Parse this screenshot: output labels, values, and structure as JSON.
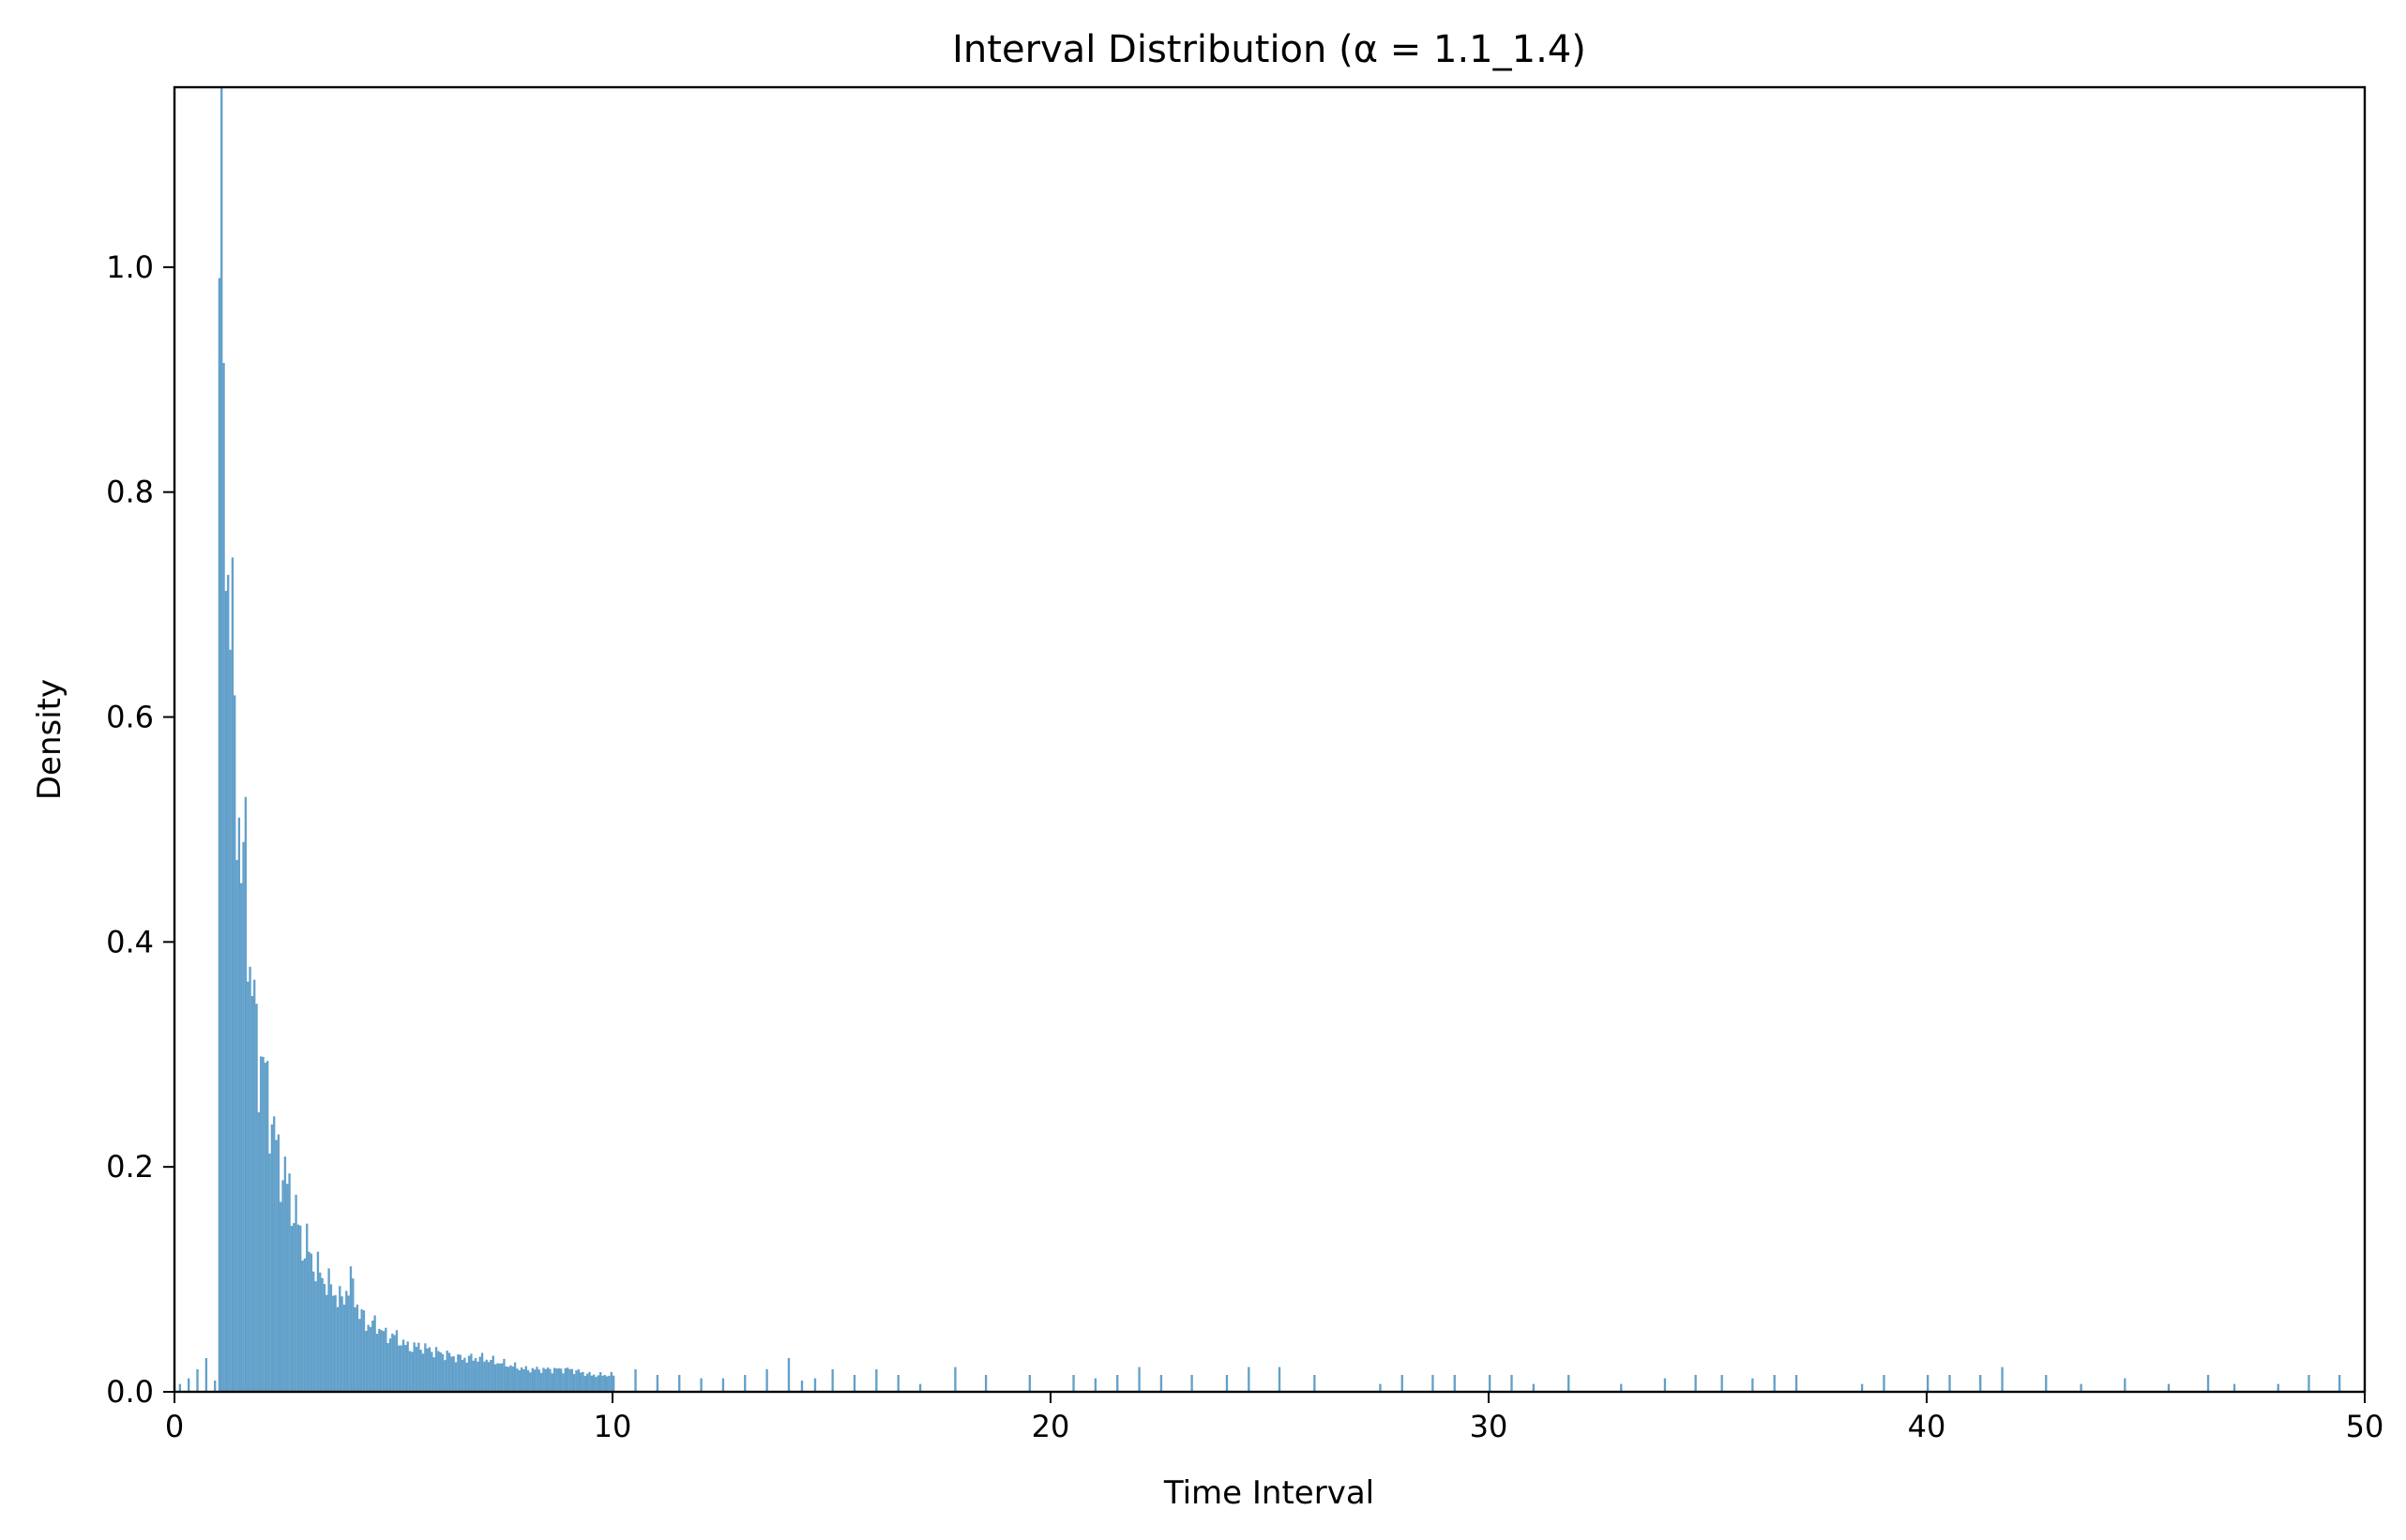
{
  "chart_data": {
    "type": "bar",
    "title": "Interval Distribution (α = 1.1_1.4)",
    "xlabel": "Time Interval",
    "ylabel": "Density",
    "xlim": [
      0,
      50
    ],
    "ylim": [
      0,
      1.16
    ],
    "grid": false,
    "legend": "none",
    "x_ticks": [
      "0",
      "10",
      "20",
      "30",
      "40",
      "50"
    ],
    "y_ticks": [
      "0.0",
      "0.2",
      "0.4",
      "0.6",
      "0.8",
      "1.0"
    ],
    "bar_color": "#1f77b4",
    "bar_opacity": 0.7,
    "bin_width": 0.05,
    "bins_main": {
      "x": [
        1.0,
        1.05,
        1.1,
        1.15,
        1.2,
        1.25,
        1.3,
        1.35,
        1.4,
        1.45,
        1.5,
        1.55,
        1.6,
        1.7,
        1.8,
        1.9,
        2.0,
        2.1,
        2.2,
        2.3,
        2.4,
        2.5,
        2.6,
        2.7,
        2.8,
        2.9,
        3.0,
        3.2,
        3.4,
        3.6,
        3.8,
        4.0,
        4.2,
        4.4,
        4.6,
        4.8,
        5.0,
        5.3,
        5.6,
        6.0,
        6.5,
        7.0,
        7.5,
        8.0,
        8.5,
        9.0,
        9.5,
        10.0
      ],
      "y": [
        1.06,
        1.16,
        0.91,
        0.8,
        0.72,
        0.7,
        0.65,
        0.6,
        0.55,
        0.5,
        0.47,
        0.44,
        0.5,
        0.37,
        0.34,
        0.3,
        0.29,
        0.27,
        0.24,
        0.22,
        0.2,
        0.19,
        0.18,
        0.16,
        0.15,
        0.13,
        0.13,
        0.11,
        0.1,
        0.09,
        0.08,
        0.1,
        0.07,
        0.06,
        0.06,
        0.05,
        0.05,
        0.04,
        0.04,
        0.035,
        0.03,
        0.03,
        0.025,
        0.02,
        0.02,
        0.02,
        0.015,
        0.015
      ]
    },
    "bins_tail": {
      "x": [
        0.1,
        0.3,
        0.5,
        0.7,
        0.9,
        10.5,
        11.0,
        11.5,
        12.0,
        12.5,
        13.0,
        13.5,
        14.0,
        14.3,
        14.6,
        15.0,
        15.5,
        16.0,
        16.5,
        17.0,
        17.8,
        18.5,
        19.5,
        20.5,
        21.0,
        21.5,
        22.0,
        22.5,
        23.2,
        24.0,
        24.5,
        25.2,
        26.0,
        27.5,
        28.0,
        28.7,
        29.2,
        30.0,
        30.5,
        31.0,
        31.8,
        33.0,
        34.0,
        34.7,
        35.3,
        36.0,
        36.5,
        37.0,
        38.5,
        39.0,
        40.0,
        40.5,
        41.2,
        41.7,
        42.7,
        43.5,
        44.5,
        45.5,
        46.4,
        47.0,
        48.0,
        48.7,
        49.4
      ],
      "y": [
        0.007,
        0.012,
        0.02,
        0.03,
        0.01,
        0.02,
        0.015,
        0.015,
        0.012,
        0.012,
        0.015,
        0.02,
        0.03,
        0.01,
        0.012,
        0.02,
        0.015,
        0.02,
        0.015,
        0.007,
        0.022,
        0.015,
        0.015,
        0.015,
        0.012,
        0.015,
        0.022,
        0.015,
        0.015,
        0.015,
        0.022,
        0.022,
        0.015,
        0.007,
        0.015,
        0.015,
        0.015,
        0.015,
        0.015,
        0.007,
        0.015,
        0.007,
        0.012,
        0.015,
        0.015,
        0.012,
        0.015,
        0.015,
        0.007,
        0.015,
        0.015,
        0.015,
        0.015,
        0.022,
        0.015,
        0.007,
        0.012,
        0.007,
        0.015,
        0.007,
        0.007,
        0.015,
        0.015
      ]
    }
  }
}
